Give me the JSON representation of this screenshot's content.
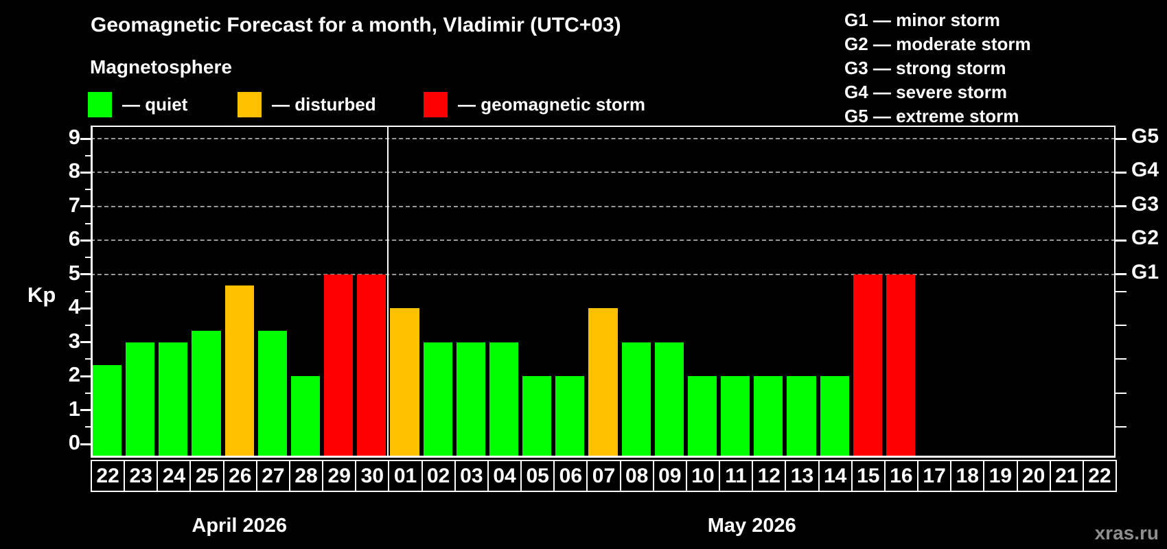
{
  "title": "Geomagnetic Forecast for a month, Vladimir (UTC+03)",
  "subtitle": "Magnetosphere",
  "legend": [
    {
      "label": "— quiet",
      "status": "quiet",
      "color": "#00ff00"
    },
    {
      "label": "— disturbed",
      "status": "disturbed",
      "color": "#ffc000"
    },
    {
      "label": "— geomagnetic storm",
      "status": "storm",
      "color": "#ff0000"
    }
  ],
  "storm_scale": [
    {
      "text": "G1 — minor storm"
    },
    {
      "text": "G2 — moderate storm"
    },
    {
      "text": "G3 — strong storm"
    },
    {
      "text": "G4 — severe storm"
    },
    {
      "text": "G5 — extreme storm"
    }
  ],
  "watermark": "xras.ru",
  "chart_data": {
    "type": "bar",
    "ylabel": "Kp",
    "ylim": [
      0,
      9
    ],
    "y_ticks": [
      "0",
      "1",
      "2",
      "3",
      "4",
      "5",
      "6",
      "7",
      "8",
      "9"
    ],
    "grid": "dashed-horizontal",
    "gridlines_at_kp": [
      5,
      6,
      7,
      8,
      9
    ],
    "right_axis_labels": [
      {
        "label": "G5",
        "kp": 9
      },
      {
        "label": "G4",
        "kp": 8
      },
      {
        "label": "G3",
        "kp": 7
      },
      {
        "label": "G2",
        "kp": 6
      },
      {
        "label": "G1",
        "kp": 5
      }
    ],
    "status_colors": {
      "quiet": "#00ff00",
      "disturbed": "#ffc000",
      "storm": "#ff0000"
    },
    "legend_position": "top-left",
    "months": [
      {
        "label": "April 2026",
        "days": [
          {
            "day": "22",
            "kp": 2.33,
            "status": "quiet"
          },
          {
            "day": "23",
            "kp": 3,
            "status": "quiet"
          },
          {
            "day": "24",
            "kp": 3,
            "status": "quiet"
          },
          {
            "day": "25",
            "kp": 3.33,
            "status": "quiet"
          },
          {
            "day": "26",
            "kp": 4.67,
            "status": "disturbed"
          },
          {
            "day": "27",
            "kp": 3.33,
            "status": "quiet"
          },
          {
            "day": "28",
            "kp": 2,
            "status": "quiet"
          },
          {
            "day": "29",
            "kp": 5,
            "status": "storm"
          },
          {
            "day": "30",
            "kp": 5,
            "status": "storm"
          }
        ]
      },
      {
        "label": "May 2026",
        "days": [
          {
            "day": "01",
            "kp": 4,
            "status": "disturbed"
          },
          {
            "day": "02",
            "kp": 3,
            "status": "quiet"
          },
          {
            "day": "03",
            "kp": 3,
            "status": "quiet"
          },
          {
            "day": "04",
            "kp": 3,
            "status": "quiet"
          },
          {
            "day": "05",
            "kp": 2,
            "status": "quiet"
          },
          {
            "day": "06",
            "kp": 2,
            "status": "quiet"
          },
          {
            "day": "07",
            "kp": 4,
            "status": "disturbed"
          },
          {
            "day": "08",
            "kp": 3,
            "status": "quiet"
          },
          {
            "day": "09",
            "kp": 3,
            "status": "quiet"
          },
          {
            "day": "10",
            "kp": 2,
            "status": "quiet"
          },
          {
            "day": "11",
            "kp": 2,
            "status": "quiet"
          },
          {
            "day": "12",
            "kp": 2,
            "status": "quiet"
          },
          {
            "day": "13",
            "kp": 2,
            "status": "quiet"
          },
          {
            "day": "14",
            "kp": 2,
            "status": "quiet"
          },
          {
            "day": "15",
            "kp": 5,
            "status": "storm"
          },
          {
            "day": "16",
            "kp": 5,
            "status": "storm"
          },
          {
            "day": "17",
            "kp": null,
            "status": null
          },
          {
            "day": "18",
            "kp": null,
            "status": null
          },
          {
            "day": "19",
            "kp": null,
            "status": null
          },
          {
            "day": "20",
            "kp": null,
            "status": null
          },
          {
            "day": "21",
            "kp": null,
            "status": null
          },
          {
            "day": "22",
            "kp": null,
            "status": null
          }
        ]
      }
    ]
  }
}
